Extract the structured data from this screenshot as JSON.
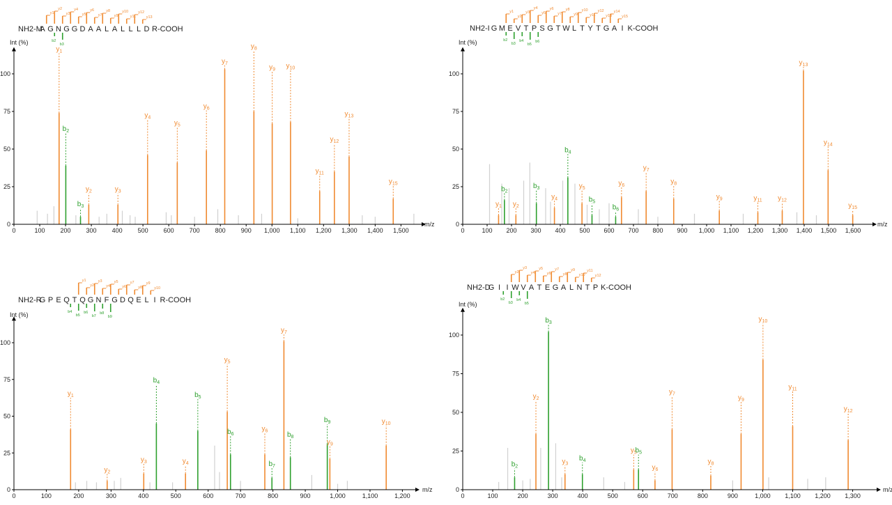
{
  "colors": {
    "y_ion": "#f08a30",
    "b_ion": "#2ea02e",
    "noise": "#d0d0d0",
    "axis": "#000000",
    "text": "#222222"
  },
  "chart_data": [
    {
      "type": "bar",
      "sequence": {
        "prefix": "NH2-M",
        "residues": [
          "A",
          "G",
          "N",
          "G",
          "G",
          "D",
          "A",
          "A",
          "L",
          "A",
          "L",
          "L",
          "L",
          "D"
        ],
        "suffix": "R-COOH",
        "y_marks": [
          "y13",
          "y12",
          "y11",
          "y10",
          "y9",
          "y8",
          "y7",
          "y6",
          "y5",
          "y4",
          "y3",
          "y2",
          "y1"
        ],
        "b_marks": [
          "b2",
          "b3"
        ]
      },
      "ylabel": "Int (%)",
      "xlabel": "m/z",
      "xlim": [
        0,
        1580
      ],
      "ylim": [
        0,
        115
      ],
      "xticks": [
        0,
        100,
        200,
        300,
        400,
        500,
        600,
        700,
        800,
        900,
        1000,
        1100,
        1200,
        1300,
        1400,
        1500
      ],
      "xtick_labels": [
        "0",
        "100",
        "200",
        "300",
        "400",
        "500",
        "600",
        "700",
        "800",
        "900",
        "1,000",
        "1,100",
        "1,200",
        "1,300",
        "1,400",
        "1,500"
      ],
      "yticks": [
        0,
        25,
        50,
        75,
        100
      ],
      "ytick_labels": [
        "0",
        "25",
        "50",
        "75",
        "100"
      ],
      "peaks": [
        {
          "ion": "y",
          "num": "1",
          "mz": 175,
          "intensity": 74,
          "label_y": 115
        },
        {
          "ion": "b",
          "num": "2",
          "mz": 201,
          "intensity": 39,
          "label_y": 62
        },
        {
          "ion": "b",
          "num": "3",
          "mz": 258,
          "intensity": 5,
          "label_y": 12
        },
        {
          "ion": "y",
          "num": "2",
          "mz": 290,
          "intensity": 13,
          "label_y": 22
        },
        {
          "ion": "y",
          "num": "3",
          "mz": 403,
          "intensity": 13,
          "label_y": 22
        },
        {
          "ion": "y",
          "num": "4",
          "mz": 518,
          "intensity": 46,
          "label_y": 71
        },
        {
          "ion": "y",
          "num": "5",
          "mz": 633,
          "intensity": 41,
          "label_y": 66
        },
        {
          "ion": "y",
          "num": "6",
          "mz": 746,
          "intensity": 49,
          "label_y": 77
        },
        {
          "ion": "y",
          "num": "7",
          "mz": 817,
          "intensity": 103,
          "label_y": 107
        },
        {
          "ion": "y",
          "num": "8",
          "mz": 930,
          "intensity": 75,
          "label_y": 117
        },
        {
          "ion": "y",
          "num": "9",
          "mz": 1001,
          "intensity": 67,
          "label_y": 103
        },
        {
          "ion": "y",
          "num": "10",
          "mz": 1072,
          "intensity": 68,
          "label_y": 104
        },
        {
          "ion": "y",
          "num": "11",
          "mz": 1185,
          "intensity": 22,
          "label_y": 34
        },
        {
          "ion": "y",
          "num": "12",
          "mz": 1242,
          "intensity": 35,
          "label_y": 55
        },
        {
          "ion": "y",
          "num": "13",
          "mz": 1299,
          "intensity": 45,
          "label_y": 72
        },
        {
          "ion": "y",
          "num": "15",
          "mz": 1470,
          "intensity": 17,
          "label_y": 27
        }
      ],
      "noise": [
        [
          90,
          9
        ],
        [
          130,
          7
        ],
        [
          155,
          12
        ],
        [
          240,
          6
        ],
        [
          330,
          5
        ],
        [
          360,
          7
        ],
        [
          420,
          9
        ],
        [
          450,
          6
        ],
        [
          470,
          5
        ],
        [
          590,
          8
        ],
        [
          610,
          6
        ],
        [
          700,
          5
        ],
        [
          790,
          10
        ],
        [
          870,
          6
        ],
        [
          960,
          7
        ],
        [
          1100,
          4
        ],
        [
          1350,
          6
        ],
        [
          1400,
          5
        ],
        [
          1550,
          7
        ]
      ]
    },
    {
      "type": "bar",
      "sequence": {
        "prefix": "NH2-I",
        "residues": [
          "G",
          "M",
          "E",
          "V",
          "T",
          "P",
          "S",
          "G",
          "T",
          "W",
          "L",
          "T",
          "Y",
          "T",
          "G",
          "A",
          "I"
        ],
        "suffix": "K-COOH",
        "y_marks": [
          "y15",
          "y14",
          "y13",
          "y12",
          "y11",
          "y10",
          "y9",
          "y8",
          "y7",
          "y6",
          "y5",
          "y4",
          "y3",
          "y2",
          "y1"
        ],
        "b_marks": [
          "b2",
          "b3",
          "b4",
          "b5",
          "b6"
        ]
      },
      "ylabel": "Int (%)",
      "xlabel": "m/z",
      "xlim": [
        0,
        1680
      ],
      "ylim": [
        0,
        115
      ],
      "xticks": [
        0,
        100,
        200,
        300,
        400,
        500,
        600,
        700,
        800,
        900,
        1000,
        1100,
        1200,
        1300,
        1400,
        1500,
        1600
      ],
      "xtick_labels": [
        "0",
        "100",
        "200",
        "300",
        "400",
        "500",
        "600",
        "700",
        "800",
        "900",
        "1,000",
        "1,100",
        "1,200",
        "1,300",
        "1,400",
        "1,500",
        "1,600"
      ],
      "yticks": [
        0,
        25,
        50,
        75,
        100
      ],
      "ytick_labels": [
        "0",
        "25",
        "50",
        "75",
        "100"
      ],
      "peaks": [
        {
          "ion": "y",
          "num": "1",
          "mz": 147,
          "intensity": 6,
          "label_y": 12
        },
        {
          "ion": "b",
          "num": "2",
          "mz": 171,
          "intensity": 16,
          "label_y": 22
        },
        {
          "ion": "y",
          "num": "2",
          "mz": 218,
          "intensity": 6,
          "label_y": 12
        },
        {
          "ion": "b",
          "num": "3",
          "mz": 302,
          "intensity": 14,
          "label_y": 24
        },
        {
          "ion": "y",
          "num": "4",
          "mz": 376,
          "intensity": 11,
          "label_y": 17
        },
        {
          "ion": "b",
          "num": "4",
          "mz": 431,
          "intensity": 31,
          "label_y": 48
        },
        {
          "ion": "y",
          "num": "5",
          "mz": 489,
          "intensity": 14,
          "label_y": 24
        },
        {
          "ion": "b",
          "num": "5",
          "mz": 530,
          "intensity": 6,
          "label_y": 15
        },
        {
          "ion": "b",
          "num": "6",
          "mz": 627,
          "intensity": 5,
          "label_y": 10
        },
        {
          "ion": "y",
          "num": "6",
          "mz": 651,
          "intensity": 18,
          "label_y": 26
        },
        {
          "ion": "y",
          "num": "7",
          "mz": 752,
          "intensity": 22,
          "label_y": 36
        },
        {
          "ion": "y",
          "num": "8",
          "mz": 865,
          "intensity": 17,
          "label_y": 27
        },
        {
          "ion": "y",
          "num": "9",
          "mz": 1052,
          "intensity": 9,
          "label_y": 17
        },
        {
          "ion": "y",
          "num": "11",
          "mz": 1210,
          "intensity": 8,
          "label_y": 16
        },
        {
          "ion": "y",
          "num": "12",
          "mz": 1310,
          "intensity": 9,
          "label_y": 16
        },
        {
          "ion": "y",
          "num": "13",
          "mz": 1397,
          "intensity": 102,
          "label_y": 106
        },
        {
          "ion": "y",
          "num": "14",
          "mz": 1498,
          "intensity": 36,
          "label_y": 53
        },
        {
          "ion": "y",
          "num": "15",
          "mz": 1599,
          "intensity": 6,
          "label_y": 11
        }
      ],
      "noise": [
        [
          110,
          40
        ],
        [
          160,
          27
        ],
        [
          190,
          24
        ],
        [
          250,
          29
        ],
        [
          275,
          41
        ],
        [
          340,
          24
        ],
        [
          360,
          15
        ],
        [
          410,
          29
        ],
        [
          460,
          27
        ],
        [
          510,
          13
        ],
        [
          560,
          10
        ],
        [
          600,
          14
        ],
        [
          720,
          10
        ],
        [
          800,
          5
        ],
        [
          950,
          7
        ],
        [
          1150,
          7
        ],
        [
          1370,
          8
        ],
        [
          1450,
          6
        ]
      ]
    },
    {
      "type": "bar",
      "sequence": {
        "prefix": "NH2-R",
        "residues": [
          "G",
          "P",
          "E",
          "Q",
          "T",
          "Q",
          "G",
          "N",
          "F",
          "G",
          "D",
          "Q",
          "E",
          "L",
          "I"
        ],
        "suffix": "R-COOH",
        "y_marks": [
          "y10",
          "y9",
          "y8",
          "y7",
          "y6",
          "y5",
          "y4",
          "y3",
          "y2",
          "y1"
        ],
        "b_marks": [
          "b4",
          "b5",
          "b6",
          "b7",
          "b8",
          "b9"
        ]
      },
      "ylabel": "Int (%)",
      "xlabel": "m/z",
      "xlim": [
        0,
        1240
      ],
      "ylim": [
        0,
        115
      ],
      "xticks": [
        0,
        100,
        200,
        300,
        400,
        500,
        600,
        700,
        800,
        900,
        1000,
        1100,
        1200
      ],
      "xtick_labels": [
        "0",
        "100",
        "200",
        "300",
        "400",
        "500",
        "600",
        "700",
        "800",
        "900",
        "1,000",
        "1,100",
        "1,200"
      ],
      "yticks": [
        0,
        25,
        50,
        75,
        100
      ],
      "ytick_labels": [
        "0",
        "25",
        "50",
        "75",
        "100"
      ],
      "peaks": [
        {
          "ion": "y",
          "num": "1",
          "mz": 175,
          "intensity": 41,
          "label_y": 64
        },
        {
          "ion": "y",
          "num": "2",
          "mz": 288,
          "intensity": 6,
          "label_y": 12
        },
        {
          "ion": "y",
          "num": "3",
          "mz": 401,
          "intensity": 11,
          "label_y": 19
        },
        {
          "ion": "b",
          "num": "4",
          "mz": 440,
          "intensity": 45,
          "label_y": 73
        },
        {
          "ion": "y",
          "num": "4",
          "mz": 530,
          "intensity": 11,
          "label_y": 18
        },
        {
          "ion": "b",
          "num": "5",
          "mz": 568,
          "intensity": 40,
          "label_y": 63
        },
        {
          "ion": "y",
          "num": "5",
          "mz": 659,
          "intensity": 53,
          "label_y": 87
        },
        {
          "ion": "b",
          "num": "6",
          "mz": 669,
          "intensity": 24,
          "label_y": 38
        },
        {
          "ion": "y",
          "num": "6",
          "mz": 775,
          "intensity": 24,
          "label_y": 40
        },
        {
          "ion": "b",
          "num": "7",
          "mz": 797,
          "intensity": 8,
          "label_y": 16
        },
        {
          "ion": "y",
          "num": "7",
          "mz": 834,
          "intensity": 101,
          "label_y": 107
        },
        {
          "ion": "b",
          "num": "8",
          "mz": 854,
          "intensity": 22,
          "label_y": 36
        },
        {
          "ion": "b",
          "num": "9",
          "mz": 968,
          "intensity": 31,
          "label_y": 46
        },
        {
          "ion": "y",
          "num": "9",
          "mz": 976,
          "intensity": 21,
          "label_y": 31
        },
        {
          "ion": "y",
          "num": "10",
          "mz": 1150,
          "intensity": 30,
          "label_y": 45
        }
      ],
      "noise": [
        [
          190,
          5
        ],
        [
          225,
          6
        ],
        [
          255,
          5
        ],
        [
          310,
          6
        ],
        [
          330,
          8
        ],
        [
          420,
          5
        ],
        [
          490,
          5
        ],
        [
          620,
          30
        ],
        [
          635,
          12
        ],
        [
          700,
          6
        ],
        [
          920,
          10
        ],
        [
          1000,
          4
        ],
        [
          1030,
          6
        ]
      ]
    },
    {
      "type": "bar",
      "sequence": {
        "prefix": "NH2-D",
        "residues": [
          "G",
          "I",
          "I",
          "W",
          "V",
          "A",
          "T",
          "E",
          "G",
          "A",
          "L",
          "N",
          "T",
          "P"
        ],
        "suffix": "K-COOH",
        "y_marks": [
          "y12",
          "y11",
          "y10",
          "y9",
          "y8",
          "y7",
          "y6",
          "y5",
          "y4",
          "y3",
          "y2"
        ],
        "b_marks": [
          "b2",
          "b3",
          "b4",
          "b5"
        ]
      },
      "ylabel": "Int (%)",
      "xlabel": "m/z",
      "xlim": [
        0,
        1380
      ],
      "ylim": [
        0,
        115
      ],
      "xticks": [
        0,
        100,
        200,
        300,
        400,
        500,
        600,
        700,
        800,
        900,
        1000,
        1100,
        1200,
        1300
      ],
      "xtick_labels": [
        "0",
        "100",
        "200",
        "300",
        "400",
        "500",
        "600",
        "700",
        "800",
        "900",
        "1,000",
        "1,100",
        "1,200",
        "1,300"
      ],
      "yticks": [
        0,
        25,
        50,
        75,
        100
      ],
      "ytick_labels": [
        "0",
        "25",
        "50",
        "75",
        "100"
      ],
      "peaks": [
        {
          "ion": "b",
          "num": "2",
          "mz": 173,
          "intensity": 8,
          "label_y": 15
        },
        {
          "ion": "y",
          "num": "2",
          "mz": 244,
          "intensity": 36,
          "label_y": 59
        },
        {
          "ion": "b",
          "num": "3",
          "mz": 286,
          "intensity": 102,
          "label_y": 108
        },
        {
          "ion": "y",
          "num": "3",
          "mz": 341,
          "intensity": 10,
          "label_y": 17
        },
        {
          "ion": "b",
          "num": "4",
          "mz": 399,
          "intensity": 10,
          "label_y": 19
        },
        {
          "ion": "y",
          "num": "5",
          "mz": 570,
          "intensity": 13,
          "label_y": 24
        },
        {
          "ion": "b",
          "num": "5",
          "mz": 586,
          "intensity": 13,
          "label_y": 24
        },
        {
          "ion": "y",
          "num": "6",
          "mz": 641,
          "intensity": 6,
          "label_y": 13
        },
        {
          "ion": "y",
          "num": "7",
          "mz": 698,
          "intensity": 39,
          "label_y": 62
        },
        {
          "ion": "y",
          "num": "8",
          "mz": 827,
          "intensity": 9,
          "label_y": 17
        },
        {
          "ion": "y",
          "num": "9",
          "mz": 928,
          "intensity": 36,
          "label_y": 58
        },
        {
          "ion": "y",
          "num": "10",
          "mz": 1001,
          "intensity": 84,
          "label_y": 109
        },
        {
          "ion": "y",
          "num": "11",
          "mz": 1100,
          "intensity": 41,
          "label_y": 65
        },
        {
          "ion": "y",
          "num": "12",
          "mz": 1285,
          "intensity": 32,
          "label_y": 51
        }
      ],
      "noise": [
        [
          120,
          5
        ],
        [
          150,
          27
        ],
        [
          200,
          6
        ],
        [
          225,
          7
        ],
        [
          260,
          27
        ],
        [
          310,
          30
        ],
        [
          330,
          8
        ],
        [
          470,
          8
        ],
        [
          540,
          5
        ],
        [
          900,
          6
        ],
        [
          1020,
          8
        ],
        [
          1150,
          7
        ],
        [
          1210,
          8
        ]
      ]
    }
  ]
}
